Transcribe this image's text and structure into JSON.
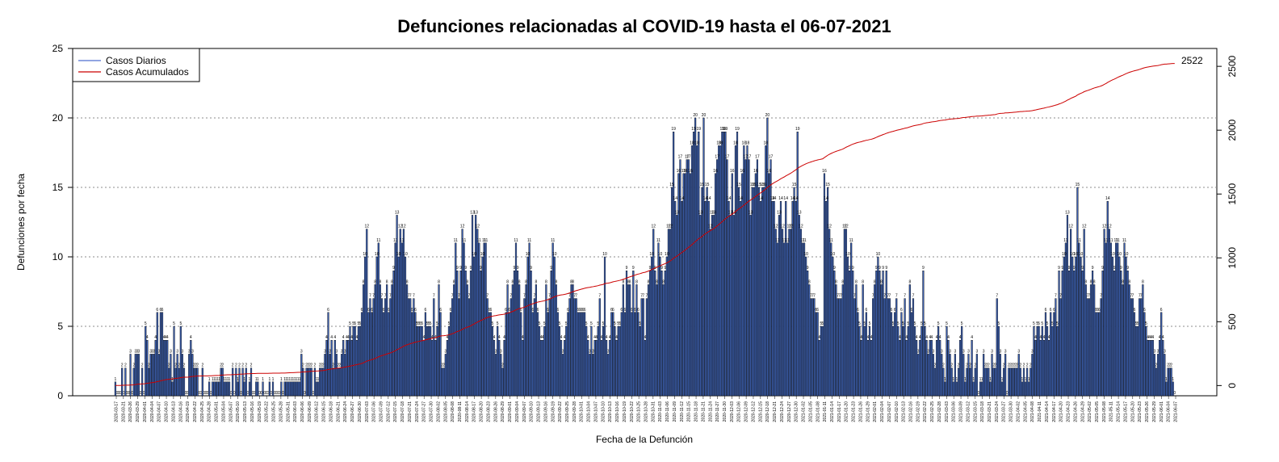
{
  "chart_data": {
    "type": "bar",
    "title": "Defunciones relacionadas al COVID-19 hasta el 06-07-2021",
    "xlabel": "Fecha de la Defunción",
    "ylabel": "Defunciones por fecha",
    "ylim": [
      0,
      25
    ],
    "yticks": [
      "0",
      "5",
      "10",
      "15",
      "20",
      "25"
    ],
    "y2lim": [
      -80,
      2640
    ],
    "y2ticks": [
      "0",
      "500",
      "1000",
      "1500",
      "2000",
      "2500"
    ],
    "grid": "horizontal dotted",
    "legend_position": "top-left",
    "colors": {
      "bars": "#3b5fb0",
      "bar_edge": "#000000",
      "cumulative": "#cc0000",
      "grid": "#8c8c8c",
      "legend_daily": "#4f6fd0"
    },
    "series": [
      {
        "name": "Casos Diarios",
        "type": "bar"
      },
      {
        "name": "Casos Acumulados",
        "type": "line"
      }
    ],
    "final_cumulative_label": "2522",
    "final_cumulative": 2522,
    "start_date": "2020-03-17",
    "end_date": "2021-07-06",
    "x_tick_labels": [
      "2020-03-17",
      "2020-03-21",
      "2020-03-26",
      "2020-03-29",
      "2020-04-01",
      "2020-04-04",
      "2020-04-07",
      "2020-04-10",
      "2020-04-13",
      "2020-04-16",
      "2020-04-19",
      "2020-04-22",
      "2020-04-25",
      "2020-04-28",
      "2020-05-01",
      "2020-05-04",
      "2020-05-07",
      "2020-05-10",
      "2020-05-13",
      "2020-05-16",
      "2020-05-19",
      "2020-05-22",
      "2020-05-25",
      "2020-05-28",
      "2020-05-31",
      "2020-06-03",
      "2020-06-06",
      "2020-06-09",
      "2020-06-12",
      "2020-06-15",
      "2020-06-18",
      "2020-06-21",
      "2020-06-24",
      "2020-06-27",
      "2020-06-30",
      "2020-07-03",
      "2020-07-06",
      "2020-07-09",
      "2020-07-12",
      "2020-07-15",
      "2020-07-18",
      "2020-07-21",
      "2020-07-24",
      "2020-07-27",
      "2020-07-30",
      "2020-08-02",
      "2020-08-05",
      "2020-08-08",
      "2020-08-11",
      "2020-08-14",
      "2020-08-17",
      "2020-08-20",
      "2020-08-23",
      "2020-08-26",
      "2020-08-29",
      "2020-09-01",
      "2020-09-04",
      "2020-09-07",
      "2020-09-10",
      "2020-09-13",
      "2020-09-16",
      "2020-09-19",
      "2020-09-22",
      "2020-09-25",
      "2020-09-28",
      "2020-10-01",
      "2020-10-04",
      "2020-10-07",
      "2020-10-10",
      "2020-10-13",
      "2020-10-16",
      "2020-10-19",
      "2020-10-22",
      "2020-10-25",
      "2020-10-28",
      "2020-10-31",
      "2020-11-03",
      "2020-11-06",
      "2020-11-09",
      "2020-11-12",
      "2020-11-15",
      "2020-11-18",
      "2020-11-21",
      "2020-11-24",
      "2020-11-27",
      "2020-11-30",
      "2020-12-03",
      "2020-12-06",
      "2020-12-09",
      "2020-12-12",
      "2020-12-15",
      "2020-12-18",
      "2020-12-21",
      "2020-12-24",
      "2020-12-27",
      "2020-12-30",
      "2021-01-02",
      "2021-01-05",
      "2021-01-08",
      "2021-01-11",
      "2021-01-14",
      "2021-01-17",
      "2021-01-20",
      "2021-01-23",
      "2021-01-26",
      "2021-01-29",
      "2021-02-01",
      "2021-02-04",
      "2021-02-07",
      "2021-02-10",
      "2021-02-13",
      "2021-02-16",
      "2021-02-19",
      "2021-02-22",
      "2021-02-25",
      "2021-02-28",
      "2021-03-03",
      "2021-03-06",
      "2021-03-09",
      "2021-03-12",
      "2021-03-15",
      "2021-03-18",
      "2021-03-21",
      "2021-03-24",
      "2021-03-27",
      "2021-03-30",
      "2021-04-02",
      "2021-04-05",
      "2021-04-08",
      "2021-04-11",
      "2021-04-14",
      "2021-04-17",
      "2021-04-20",
      "2021-04-23",
      "2021-04-26",
      "2021-04-29",
      "2021-05-02",
      "2021-05-05",
      "2021-05-08",
      "2021-05-11",
      "2021-05-14",
      "2021-05-17",
      "2021-05-20",
      "2021-05-23",
      "2021-05-26",
      "2021-05-29",
      "2021-06-01",
      "2021-06-04",
      "2021-06-07"
    ],
    "values": [
      1,
      0,
      0,
      0,
      2,
      0,
      2,
      0,
      0,
      3,
      0,
      2,
      3,
      3,
      3,
      0,
      2,
      0,
      5,
      4,
      2,
      3,
      3,
      3,
      4,
      6,
      3,
      6,
      6,
      4,
      4,
      4,
      2,
      3,
      1,
      5,
      2,
      3,
      2,
      5,
      3,
      2,
      0,
      0,
      3,
      4,
      3,
      2,
      2,
      2,
      0,
      0,
      2,
      0,
      0,
      0,
      1,
      0,
      1,
      1,
      1,
      1,
      1,
      2,
      2,
      1,
      1,
      1,
      1,
      0,
      2,
      0,
      2,
      1,
      2,
      0,
      2,
      1,
      2,
      0,
      1,
      2,
      0,
      0,
      1,
      1,
      0,
      0,
      1,
      0,
      0,
      0,
      1,
      0,
      1,
      0,
      0,
      0,
      0,
      1,
      0,
      1,
      1,
      1,
      1,
      1,
      1,
      1,
      1,
      1,
      1,
      3,
      2,
      0,
      2,
      2,
      2,
      2,
      0,
      2,
      1,
      1,
      2,
      2,
      2,
      3,
      4,
      6,
      3,
      4,
      2,
      4,
      3,
      2,
      2,
      3,
      4,
      3,
      4,
      4,
      5,
      4,
      5,
      5,
      4,
      5,
      5,
      6,
      8,
      10,
      12,
      6,
      7,
      6,
      7,
      8,
      10,
      11,
      8,
      7,
      6,
      7,
      8,
      6,
      7,
      8,
      9,
      11,
      13,
      10,
      12,
      11,
      12,
      10,
      8,
      7,
      7,
      6,
      7,
      6,
      5,
      5,
      5,
      5,
      4,
      6,
      5,
      5,
      5,
      4,
      7,
      4,
      5,
      8,
      6,
      2,
      2,
      3,
      4,
      5,
      6,
      7,
      8,
      11,
      9,
      7,
      9,
      12,
      11,
      9,
      8,
      7,
      9,
      13,
      10,
      13,
      12,
      11,
      9,
      10,
      11,
      11,
      7,
      6,
      6,
      5,
      4,
      3,
      5,
      4,
      3,
      2,
      4,
      6,
      8,
      6,
      7,
      8,
      9,
      11,
      9,
      8,
      6,
      4,
      7,
      8,
      10,
      11,
      9,
      6,
      7,
      8,
      6,
      5,
      4,
      4,
      5,
      8,
      6,
      7,
      9,
      11,
      10,
      8,
      6,
      5,
      4,
      3,
      4,
      5,
      6,
      7,
      8,
      8,
      7,
      7,
      6,
      6,
      6,
      6,
      6,
      5,
      4,
      3,
      5,
      3,
      4,
      4,
      5,
      7,
      4,
      5,
      10,
      4,
      3,
      4,
      6,
      6,
      5,
      4,
      5,
      5,
      6,
      8,
      6,
      9,
      8,
      8,
      6,
      9,
      6,
      8,
      6,
      5,
      7,
      7,
      4,
      7,
      8,
      9,
      10,
      12,
      9,
      8,
      11,
      10,
      9,
      8,
      9,
      10,
      12,
      12,
      15,
      19,
      14,
      13,
      16,
      17,
      14,
      16,
      16,
      17,
      17,
      16,
      18,
      19,
      20,
      18,
      19,
      13,
      15,
      20,
      14,
      15,
      14,
      12,
      13,
      13,
      16,
      17,
      18,
      18,
      19,
      19,
      19,
      17,
      14,
      13,
      16,
      13,
      18,
      19,
      15,
      14,
      16,
      18,
      17,
      18,
      17,
      13,
      15,
      15,
      16,
      17,
      15,
      14,
      15,
      15,
      18,
      20,
      16,
      17,
      14,
      14,
      12,
      11,
      13,
      14,
      12,
      11,
      14,
      11,
      12,
      12,
      14,
      15,
      14,
      19,
      13,
      12,
      11,
      11,
      10,
      9,
      8,
      7,
      7,
      7,
      6,
      6,
      4,
      5,
      5,
      16,
      14,
      15,
      12,
      11,
      10,
      9,
      8,
      7,
      7,
      7,
      8,
      12,
      12,
      10,
      9,
      11,
      9,
      7,
      8,
      6,
      5,
      4,
      8,
      5,
      6,
      4,
      5,
      4,
      7,
      8,
      9,
      10,
      9,
      8,
      9,
      7,
      9,
      7,
      7,
      6,
      5,
      6,
      7,
      5,
      4,
      6,
      5,
      7,
      4,
      5,
      8,
      6,
      7,
      5,
      4,
      3,
      4,
      5,
      9,
      5,
      4,
      3,
      4,
      4,
      3,
      2,
      4,
      5,
      4,
      3,
      2,
      1,
      5,
      4,
      3,
      2,
      1,
      3,
      1,
      2,
      4,
      5,
      3,
      1,
      2,
      3,
      2,
      4,
      1,
      2,
      3,
      0,
      1,
      1,
      3,
      2,
      2,
      2,
      1,
      3,
      2,
      2,
      7,
      5,
      3,
      1,
      2,
      3,
      0,
      2,
      2,
      2,
      2,
      2,
      2,
      3,
      2,
      1,
      2,
      1,
      2,
      1,
      2,
      3,
      5,
      4,
      5,
      5,
      4,
      5,
      4,
      6,
      5,
      4,
      6,
      5,
      6,
      7,
      5,
      9,
      7,
      9,
      10,
      11,
      13,
      9,
      12,
      10,
      9,
      10,
      15,
      11,
      10,
      9,
      12,
      8,
      7,
      7,
      8,
      9,
      8,
      6,
      6,
      6,
      7,
      9,
      12,
      11,
      14,
      12,
      11,
      10,
      9,
      11,
      11,
      10,
      9,
      8,
      11,
      10,
      9,
      8,
      7,
      7,
      6,
      5,
      5,
      7,
      7,
      8,
      6,
      5,
      4,
      4,
      4,
      4,
      3,
      2,
      3,
      4,
      6,
      4,
      3,
      1,
      2,
      2,
      2,
      1,
      0
    ]
  },
  "legend": {
    "daily_label": "Casos Diarios",
    "cumulative_label": "Casos Acumulados"
  }
}
